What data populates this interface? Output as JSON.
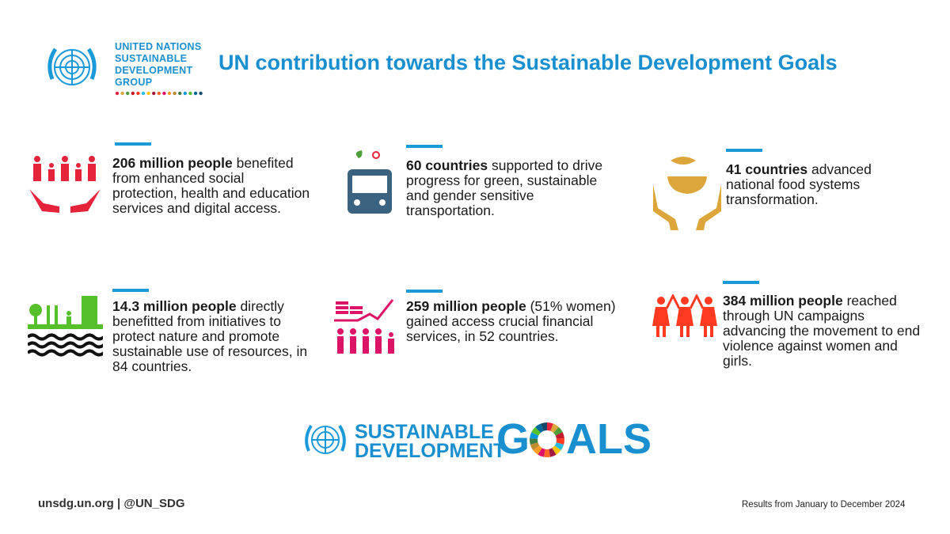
{
  "header": {
    "org_lines": [
      "UNITED NATIONS",
      "SUSTAINABLE",
      "DEVELOPMENT",
      "GROUP"
    ],
    "title": "UN contribution towards the Sustainable Development Goals"
  },
  "items": [
    {
      "lead": "206 million people",
      "body": "benefited from enhanced social protection, health and education services and digital access."
    },
    {
      "lead": "60 countries",
      "body": "supported to drive progress for green, sustainable and gender sensitive transportation."
    },
    {
      "lead": "41 countries",
      "body": "advanced national food systems transformation."
    },
    {
      "lead": "14.3 million people",
      "body": "directly benefitted from initiatives to protect nature and promote sustainable use of resources, in 84 countries."
    },
    {
      "lead": "259 million people",
      "body": "(51% women) gained access crucial financial services, in 52 countries."
    },
    {
      "lead": "384 million people",
      "body": "reached through UN campaigns advancing the movement to end violence against women and girls."
    }
  ],
  "goals_logo": {
    "line1": "SUSTAINABLE",
    "line2": "DEVELOPMENT",
    "word_start": "G",
    "word_end": "ALS"
  },
  "footer": {
    "left": "unsdg.un.org | @UN_SDG",
    "right": "Results from January to December 2024"
  }
}
